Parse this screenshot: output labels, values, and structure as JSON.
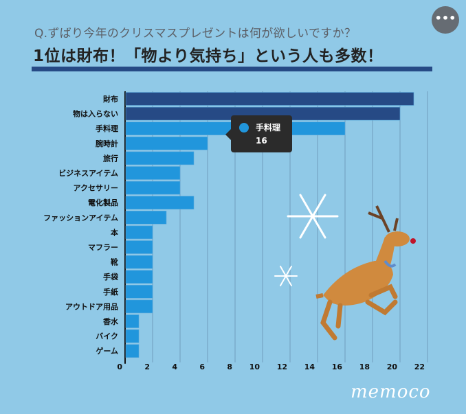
{
  "header": {
    "question": "Q.ずばり今年のクリスマスプレゼントは何が欲しいですか？",
    "title": "1位は財布！「物より気持ち」という人も多数！",
    "menu_icon": "more-horizontal-icon",
    "menu_label": "•••"
  },
  "chart_data": {
    "type": "bar",
    "orientation": "horizontal",
    "categories": [
      "財布",
      "物は入らない",
      "手料理",
      "腕時計",
      "旅行",
      "ビジネスアイテム",
      "アクセサリー",
      "電化製品",
      "ファッションアイテム",
      "本",
      "マフラー",
      "靴",
      "手袋",
      "手紙",
      "アウトドア用品",
      "香水",
      "バイク",
      "ゲーム"
    ],
    "values": [
      21,
      20,
      16,
      6,
      5,
      4,
      4,
      5,
      3,
      2,
      2,
      2,
      2,
      2,
      2,
      1,
      1,
      1
    ],
    "highlight_colors": {
      "top": "#264a85",
      "default": "#2196dc"
    },
    "highlighted_count": 2,
    "xlim": [
      0,
      22
    ],
    "xticks": [
      0,
      2,
      4,
      6,
      8,
      10,
      12,
      14,
      16,
      18,
      20,
      22
    ],
    "grid": true,
    "tooltip": {
      "name": "手料理",
      "value": "16"
    }
  },
  "branding": {
    "logo": "memoco"
  },
  "colors": {
    "background": "#90c9e7",
    "rule": "#264a85"
  }
}
